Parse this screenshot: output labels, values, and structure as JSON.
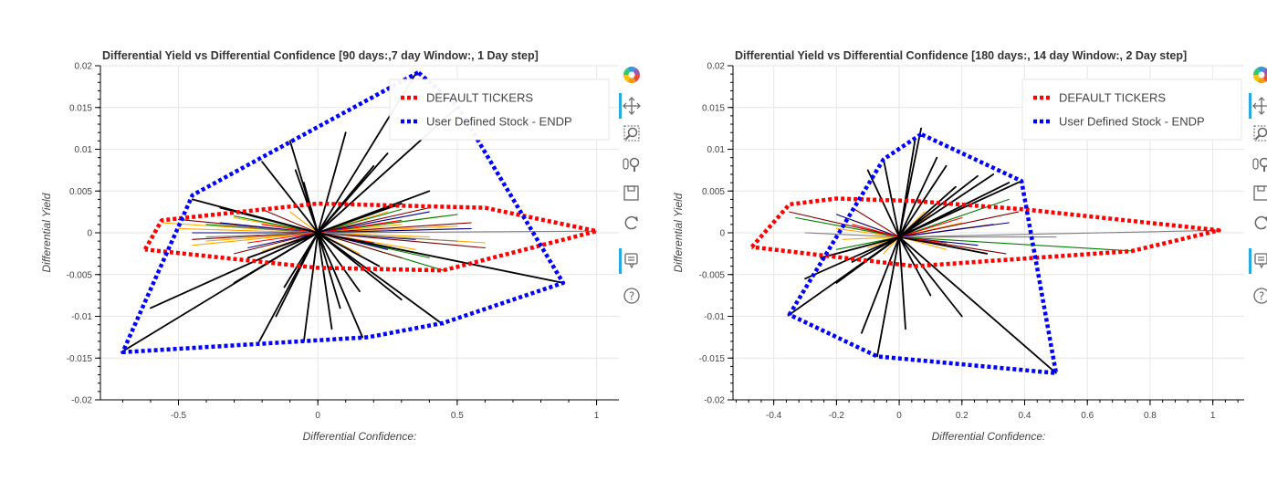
{
  "toolbar_icons": [
    "bokeh-logo-icon",
    "pan-icon",
    "box-zoom-icon",
    "wheel-zoom-icon",
    "save-icon",
    "reset-icon",
    "hover-icon",
    "help-icon"
  ],
  "chart_data": [
    {
      "type": "line",
      "title": "Differential Yield vs Differential Confidence  [90  days:,7  day Window:, 1  Day step]",
      "xlabel": "Differential Confidence:",
      "ylabel": "Differential Yield",
      "xlim": [
        -0.78,
        1.08
      ],
      "ylim": [
        -0.02,
        0.02
      ],
      "xticks": [
        -0.5,
        0,
        0.5,
        1
      ],
      "xtick_labels": [
        "-0.5",
        "0",
        "0.5",
        "1"
      ],
      "yticks": [
        -0.02,
        -0.015,
        -0.01,
        -0.005,
        0,
        0.005,
        0.01,
        0.015,
        0.02
      ],
      "ytick_labels": [
        "-0.02",
        "-0.015",
        "-0.01",
        "-0.005",
        "0",
        "0.005",
        "0.01",
        "0.015",
        "0.02"
      ],
      "grid": true,
      "legend_position": "top-right",
      "hull_series": [
        {
          "name": "DEFAULT TICKERS",
          "color": "#ff0000",
          "dash": "dotted",
          "x": [
            -0.62,
            -0.56,
            0.0,
            0.6,
            1.0,
            0.45,
            0.0,
            -0.62
          ],
          "y": [
            -0.002,
            0.0015,
            0.0035,
            0.003,
            0.0002,
            -0.0045,
            -0.0042,
            -0.002
          ]
        },
        {
          "name": "User Defined Stock - ENDP",
          "color": "#0000ff",
          "dash": "dotted",
          "x": [
            0.36,
            -0.45,
            -0.7,
            0.18,
            0.45,
            0.88,
            0.5,
            0.36
          ],
          "y": [
            0.0192,
            0.0045,
            -0.0143,
            -0.0125,
            -0.0108,
            -0.006,
            0.0152,
            0.0192
          ]
        }
      ],
      "center": [
        0.0,
        0.0
      ],
      "rays": [
        {
          "color": "#000000",
          "points": [
            [
              -0.21,
              -0.013
            ],
            [
              0.35,
              0.019
            ],
            [
              -0.7,
              -0.0142
            ],
            [
              0.88,
              -0.006
            ],
            [
              -0.45,
              0.004
            ],
            [
              0.5,
              0.015
            ],
            [
              0.16,
              -0.0125
            ],
            [
              -0.1,
              0.011
            ],
            [
              0.45,
              -0.011
            ],
            [
              -0.6,
              -0.009
            ],
            [
              0.2,
              0.008
            ],
            [
              -0.3,
              -0.006
            ],
            [
              0.05,
              -0.0115
            ],
            [
              -0.2,
              0.0085
            ],
            [
              0.3,
              -0.008
            ],
            [
              -0.15,
              -0.01
            ],
            [
              0.1,
              0.012
            ],
            [
              -0.05,
              -0.013
            ],
            [
              0.25,
              0.0095
            ],
            [
              0.4,
              0.005
            ],
            [
              -0.35,
              0.003
            ],
            [
              0.15,
              -0.007
            ],
            [
              -0.08,
              0.0075
            ],
            [
              0.22,
              -0.004
            ],
            [
              0.3,
              0.0035
            ],
            [
              -0.25,
              -0.003
            ],
            [
              0.12,
              0.0065
            ],
            [
              -0.12,
              -0.0065
            ],
            [
              0.08,
              -0.009
            ],
            [
              -0.05,
              0.006
            ]
          ]
        },
        {
          "color": "#ffa500",
          "points": [
            [
              -0.56,
              0.0012
            ],
            [
              0.6,
              -0.0012
            ],
            [
              -0.4,
              -0.001
            ],
            [
              0.45,
              0.002
            ],
            [
              -0.3,
              0.0018
            ],
            [
              0.35,
              -0.002
            ],
            [
              -0.5,
              0.0005
            ],
            [
              0.5,
              0.0008
            ],
            [
              -0.2,
              -0.0022
            ],
            [
              0.25,
              0.0025
            ],
            [
              -0.45,
              -0.0015
            ],
            [
              0.4,
              -0.0005
            ],
            [
              -0.1,
              0.0025
            ],
            [
              0.15,
              -0.0025
            ],
            [
              -0.3,
              0.0
            ],
            [
              0.3,
              0.001
            ]
          ]
        },
        {
          "color": "#008000",
          "points": [
            [
              0.5,
              0.0022
            ],
            [
              -0.3,
              0.002
            ],
            [
              0.45,
              -0.0045
            ],
            [
              -0.2,
              -0.003
            ],
            [
              0.3,
              0.0028
            ],
            [
              0.4,
              -0.003
            ],
            [
              -0.4,
              0.001
            ],
            [
              0.2,
              -0.002
            ]
          ]
        },
        {
          "color": "#800000",
          "points": [
            [
              0.6,
              -0.0018
            ],
            [
              -0.5,
              0.0016
            ],
            [
              0.4,
              0.003
            ],
            [
              -0.3,
              -0.0025
            ],
            [
              0.55,
              0.0012
            ],
            [
              -0.2,
              0.0028
            ],
            [
              0.3,
              -0.003
            ],
            [
              -0.45,
              -0.0008
            ]
          ]
        },
        {
          "color": "#000080",
          "points": [
            [
              0.4,
              0.0025
            ],
            [
              -0.35,
              0.0012
            ],
            [
              0.55,
              0.0005
            ],
            [
              -0.25,
              -0.0018
            ],
            [
              0.25,
              -0.002
            ],
            [
              -0.45,
              0.0
            ],
            [
              0.35,
              -0.0008
            ]
          ]
        },
        {
          "color": "#808080",
          "points": [
            [
              1.0,
              0.0002
            ],
            [
              -0.4,
              -0.0005
            ],
            [
              0.5,
              -0.001
            ],
            [
              -0.3,
              0.0008
            ]
          ]
        },
        {
          "color": "#ff0000",
          "points": [
            [
              0.3,
              0.0015
            ],
            [
              -0.2,
              0.001
            ],
            [
              0.2,
              -0.0012
            ],
            [
              -0.25,
              -0.0012
            ]
          ]
        }
      ]
    },
    {
      "type": "line",
      "title": "Differential Yield vs Differential Confidence  [180  days:, 14  day Window:, 2  Day step]",
      "xlabel": "Differential Confidence:",
      "ylabel": "Differential Yield",
      "xlim": [
        -0.53,
        1.1
      ],
      "ylim": [
        -0.02,
        0.02
      ],
      "xticks": [
        -0.4,
        -0.2,
        0,
        0.2,
        0.4,
        0.6,
        0.8,
        1
      ],
      "xtick_labels": [
        "-0.4",
        "-0.2",
        "0",
        "0.2",
        "0.4",
        "0.6",
        "0.8",
        "1"
      ],
      "yticks": [
        -0.02,
        -0.015,
        -0.01,
        -0.005,
        0,
        0.005,
        0.01,
        0.015,
        0.02
      ],
      "ytick_labels": [
        "-0.02",
        "-0.015",
        "-0.01",
        "-0.005",
        "0",
        "0.005",
        "0.01",
        "0.015",
        "0.02"
      ],
      "grid": true,
      "legend_position": "top-right",
      "hull_series": [
        {
          "name": "DEFAULT TICKERS",
          "color": "#ff0000",
          "dash": "dotted",
          "x": [
            -0.47,
            -0.35,
            -0.2,
            0.05,
            0.4,
            1.02,
            0.74,
            0.05,
            -0.47
          ],
          "y": [
            -0.0017,
            0.0034,
            0.0041,
            0.0038,
            0.0028,
            0.0003,
            -0.0022,
            -0.004,
            -0.0017
          ]
        },
        {
          "name": "User Defined Stock - ENDP",
          "color": "#0000ff",
          "dash": "dotted",
          "x": [
            0.07,
            -0.05,
            -0.35,
            -0.07,
            0.5,
            0.39,
            0.07
          ],
          "y": [
            0.0118,
            0.0088,
            -0.0098,
            -0.0148,
            -0.0168,
            0.0062,
            0.0118
          ]
        }
      ],
      "center": [
        0.0,
        -0.0005
      ],
      "rays": [
        {
          "color": "#000000",
          "points": [
            [
              0.07,
              0.0125
            ],
            [
              -0.35,
              -0.0098
            ],
            [
              0.5,
              -0.0168
            ],
            [
              -0.07,
              -0.0148
            ],
            [
              0.39,
              0.0062
            ],
            [
              -0.05,
              0.0088
            ],
            [
              0.3,
              0.007
            ],
            [
              -0.3,
              -0.0055
            ],
            [
              0.15,
              0.008
            ],
            [
              -0.2,
              -0.006
            ],
            [
              0.2,
              -0.01
            ],
            [
              -0.12,
              -0.012
            ],
            [
              0.35,
              0.006
            ],
            [
              0.1,
              -0.0075
            ],
            [
              -0.25,
              -0.003
            ],
            [
              0.25,
              0.0068
            ],
            [
              0.05,
              0.011
            ],
            [
              -0.1,
              0.0075
            ],
            [
              0.28,
              -0.0025
            ],
            [
              0.18,
              0.0055
            ],
            [
              -0.15,
              -0.0035
            ],
            [
              0.12,
              0.009
            ],
            [
              0.02,
              -0.0115
            ]
          ]
        },
        {
          "color": "#ffa500",
          "points": [
            [
              -0.15,
              0.0015
            ],
            [
              0.15,
              -0.002
            ],
            [
              -0.1,
              -0.0018
            ],
            [
              0.2,
              0.0012
            ],
            [
              -0.2,
              0.0005
            ],
            [
              0.1,
              0.0022
            ],
            [
              -0.05,
              -0.0025
            ],
            [
              0.18,
              -0.0005
            ],
            [
              -0.18,
              -0.0008
            ],
            [
              0.08,
              0.0025
            ]
          ]
        },
        {
          "color": "#008000",
          "points": [
            [
              0.75,
              -0.0022
            ],
            [
              -0.33,
              0.0018
            ],
            [
              0.35,
              0.004
            ],
            [
              -0.2,
              -0.002
            ],
            [
              0.2,
              0.003
            ]
          ]
        },
        {
          "color": "#800000",
          "points": [
            [
              0.38,
              0.0025
            ],
            [
              0.34,
              -0.0025
            ],
            [
              -0.35,
              0.0025
            ],
            [
              0.3,
              0.001
            ],
            [
              -0.15,
              0.003
            ]
          ]
        },
        {
          "color": "#000080",
          "points": [
            [
              0.35,
              0.0012
            ],
            [
              -0.2,
              0.0022
            ],
            [
              0.25,
              -0.0015
            ]
          ]
        },
        {
          "color": "#808080",
          "points": [
            [
              1.02,
              0.0003
            ],
            [
              0.5,
              -0.0005
            ],
            [
              -0.3,
              0.0
            ]
          ]
        },
        {
          "color": "#ff0000",
          "points": [
            [
              0.2,
              0.0018
            ],
            [
              -0.15,
              0.001
            ],
            [
              0.15,
              -0.0012
            ]
          ]
        }
      ]
    }
  ]
}
